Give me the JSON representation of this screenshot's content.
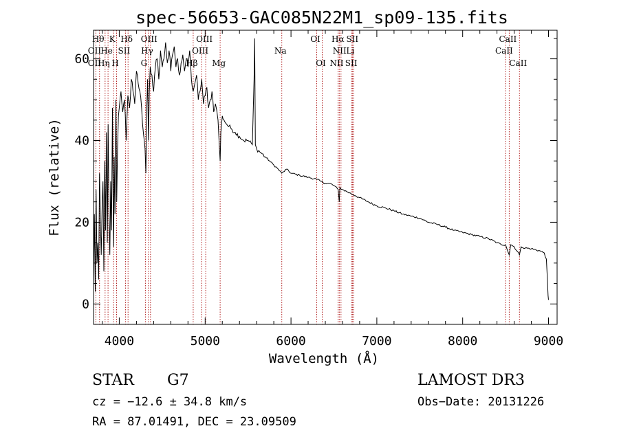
{
  "chart_data": {
    "type": "line",
    "title": "spec-56653-GAC085N22M1_sp09-135.fits",
    "xlabel": "Wavelength (Å)",
    "ylabel": "Flux (relative)",
    "xlim": [
      3700,
      9100
    ],
    "ylim": [
      -5,
      67
    ],
    "xticks": [
      4000,
      5000,
      6000,
      7000,
      8000,
      9000
    ],
    "yticks": [
      0,
      20,
      40,
      60
    ],
    "series": [
      {
        "name": "spectrum",
        "x": [
          3700,
          3710,
          3720,
          3730,
          3740,
          3750,
          3760,
          3770,
          3780,
          3790,
          3800,
          3810,
          3820,
          3830,
          3840,
          3850,
          3860,
          3870,
          3880,
          3890,
          3900,
          3910,
          3920,
          3930,
          3935,
          3940,
          3950,
          3960,
          3970,
          3980,
          3990,
          4000,
          4020,
          4040,
          4060,
          4080,
          4100,
          4120,
          4140,
          4160,
          4180,
          4200,
          4220,
          4240,
          4260,
          4280,
          4300,
          4310,
          4320,
          4330,
          4340,
          4350,
          4360,
          4380,
          4400,
          4420,
          4440,
          4460,
          4480,
          4500,
          4520,
          4540,
          4560,
          4580,
          4600,
          4620,
          4640,
          4660,
          4680,
          4700,
          4720,
          4740,
          4760,
          4780,
          4800,
          4820,
          4840,
          4861,
          4880,
          4900,
          4920,
          4940,
          4960,
          4980,
          5000,
          5020,
          5040,
          5060,
          5080,
          5100,
          5120,
          5150,
          5167,
          5175,
          5183,
          5200,
          5220,
          5250,
          5300,
          5350,
          5400,
          5450,
          5500,
          5550,
          5570,
          5577,
          5585,
          5600,
          5650,
          5700,
          5750,
          5800,
          5850,
          5893,
          5950,
          6000,
          6100,
          6200,
          6300,
          6350,
          6400,
          6450,
          6500,
          6550,
          6563,
          6570,
          6600,
          6650,
          6700,
          6750,
          6800,
          6900,
          7000,
          7100,
          7200,
          7300,
          7400,
          7500,
          7600,
          7700,
          7800,
          7900,
          8000,
          8100,
          8200,
          8300,
          8400,
          8450,
          8500,
          8542,
          8560,
          8600,
          8662,
          8680,
          8700,
          8800,
          8900,
          8950,
          8975,
          8985,
          8995,
          9000
        ],
        "y": [
          5,
          22,
          3,
          28,
          10,
          15,
          6,
          32,
          20,
          12,
          24,
          30,
          8,
          35,
          18,
          42,
          15,
          44,
          22,
          12,
          30,
          18,
          48,
          20,
          14,
          36,
          22,
          50,
          25,
          38,
          46,
          48,
          52,
          47,
          50,
          40,
          51,
          48,
          55,
          52,
          49,
          57,
          54,
          52,
          48,
          42,
          38,
          32,
          48,
          55,
          40,
          52,
          58,
          56,
          52,
          58,
          60,
          55,
          62,
          58,
          60,
          64,
          59,
          62,
          57,
          61,
          63,
          58,
          60,
          56,
          59,
          61,
          57,
          60,
          58,
          62,
          55,
          52,
          54,
          56,
          50,
          52,
          55,
          49,
          51,
          53,
          48,
          50,
          52,
          47,
          49,
          45,
          38,
          35,
          42,
          46,
          45,
          44,
          43,
          42,
          41,
          40,
          40,
          39,
          55,
          65,
          39,
          38,
          37,
          36,
          35,
          34,
          33,
          32,
          33,
          32,
          31.5,
          31,
          30.5,
          30,
          29.5,
          29.5,
          29,
          28,
          25,
          28.5,
          28,
          27.5,
          27,
          26.5,
          26,
          25,
          24,
          23.5,
          22.8,
          22,
          21.5,
          21,
          20,
          19.5,
          18.8,
          18,
          17.5,
          17,
          16.5,
          16,
          15,
          14.5,
          14.5,
          12,
          14.5,
          14,
          12,
          14,
          13.8,
          13.5,
          13,
          12.5,
          11,
          7,
          2,
          1
        ]
      }
    ],
    "emission_lines": [
      {
        "wavelength": 3727,
        "labels": [
          "OII"
        ]
      },
      {
        "wavelength": 3770,
        "labels": [
          "Hθ"
        ]
      },
      {
        "wavelength": 3835,
        "labels": [
          "Hη"
        ]
      },
      {
        "wavelength": 3869,
        "labels": [
          "He"
        ]
      },
      {
        "wavelength": 3934,
        "labels": [
          "K"
        ]
      },
      {
        "wavelength": 3968,
        "labels": [
          "H"
        ]
      },
      {
        "wavelength": 4072,
        "labels": [
          "SII"
        ]
      },
      {
        "wavelength": 4102,
        "labels": [
          "Hδ"
        ]
      },
      {
        "wavelength": 4304,
        "labels": [
          "G"
        ]
      },
      {
        "wavelength": 4340,
        "labels": [
          "Hγ"
        ]
      },
      {
        "wavelength": 4363,
        "labels": [
          "OIII"
        ]
      },
      {
        "wavelength": 4861,
        "labels": [
          "Hβ"
        ]
      },
      {
        "wavelength": 4959,
        "labels": [
          "OIII"
        ]
      },
      {
        "wavelength": 5007,
        "labels": [
          "OIII"
        ]
      },
      {
        "wavelength": 5175,
        "labels": [
          "Mg"
        ]
      },
      {
        "wavelength": 5893,
        "labels": [
          "Na"
        ]
      },
      {
        "wavelength": 6300,
        "labels": [
          "OI"
        ]
      },
      {
        "wavelength": 6364,
        "labels": [
          "OI"
        ]
      },
      {
        "wavelength": 6548,
        "labels": [
          "NII"
        ]
      },
      {
        "wavelength": 6563,
        "labels": [
          "Hα"
        ]
      },
      {
        "wavelength": 6583,
        "labels": [
          "NII"
        ]
      },
      {
        "wavelength": 6707,
        "labels": [
          "Li"
        ]
      },
      {
        "wavelength": 6717,
        "labels": [
          "SII"
        ]
      },
      {
        "wavelength": 6731,
        "labels": [
          "SII"
        ]
      },
      {
        "wavelength": 8498,
        "labels": [
          "CaII"
        ]
      },
      {
        "wavelength": 8542,
        "labels": [
          "CaII"
        ]
      },
      {
        "wavelength": 8662,
        "labels": [
          "CaII"
        ]
      }
    ]
  },
  "line_labels": {
    "row1": [
      {
        "text": "Hθ",
        "wavelength": 3770
      },
      {
        "text": "K",
        "wavelength": 3934
      },
      {
        "text": "Hδ",
        "wavelength": 4102
      },
      {
        "text": "OIII",
        "wavelength": 4363
      },
      {
        "text": "OIII",
        "wavelength": 5007
      },
      {
        "text": "OI",
        "wavelength": 6300
      },
      {
        "text": "Hα",
        "wavelength": 6563
      },
      {
        "text": "SII",
        "wavelength": 6731
      },
      {
        "text": "CaII",
        "wavelength": 8542
      }
    ],
    "row2": [
      {
        "text": "OII",
        "wavelength": 3727
      },
      {
        "text": "He",
        "wavelength": 3869
      },
      {
        "text": "SII",
        "wavelength": 4072
      },
      {
        "text": "Hγ",
        "wavelength": 4340
      },
      {
        "text": "OIII",
        "wavelength": 4959
      },
      {
        "text": "Na",
        "wavelength": 5893
      },
      {
        "text": "NII",
        "wavelength": 6583
      },
      {
        "text": "Li",
        "wavelength": 6707
      },
      {
        "text": "CaII",
        "wavelength": 8498
      }
    ],
    "row3": [
      {
        "text": "OII",
        "wavelength": 3727
      },
      {
        "text": "Hη",
        "wavelength": 3835
      },
      {
        "text": "H",
        "wavelength": 3968
      },
      {
        "text": "G",
        "wavelength": 4304
      },
      {
        "text": "Hβ",
        "wavelength": 4861
      },
      {
        "text": "Mg",
        "wavelength": 5175
      },
      {
        "text": "OI",
        "wavelength": 6364
      },
      {
        "text": "NII",
        "wavelength": 6548
      },
      {
        "text": "SII",
        "wavelength": 6717
      },
      {
        "text": "CaII",
        "wavelength": 8662
      }
    ]
  },
  "info": {
    "object_class": "STAR",
    "subclass": "G7",
    "survey": "LAMOST DR3",
    "redshift": "cz = −12.6 ± 34.8 km/s",
    "obs_date": "Obs−Date: 20131226",
    "coords": "RA =  87.01491, DEC =  23.09509"
  },
  "colors": {
    "spectrum": "#000000",
    "emission_line": "#b22222",
    "axis": "#000000"
  }
}
